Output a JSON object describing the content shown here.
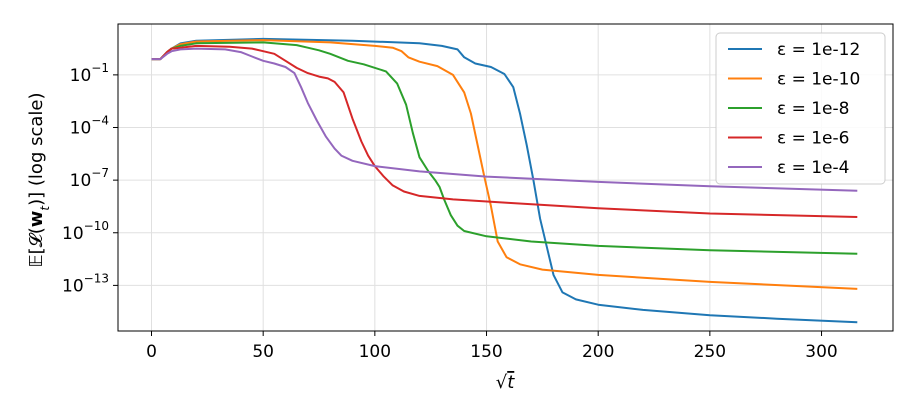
{
  "chart_data": {
    "type": "line",
    "title": "",
    "xlabel": "√t",
    "ylabel": "𝔼[𝓛(𝐰_t)] (log scale)",
    "ylabel_parts": {
      "pre": "𝔼[𝓛(",
      "bold": "w",
      "sub": "t",
      "post": ")] (log scale)"
    },
    "xlabel_parts": {
      "root": "√",
      "var": "t"
    },
    "x_scale": "linear",
    "y_scale": "log",
    "xlim": [
      -15,
      332
    ],
    "ylim_log10": [
      -15.6,
      1.9
    ],
    "grid": true,
    "legend_position": "top-right",
    "x_ticks": [
      0,
      50,
      100,
      150,
      200,
      250,
      300
    ],
    "x_tick_labels": [
      "0",
      "50",
      "100",
      "150",
      "200",
      "250",
      "300"
    ],
    "y_ticks_log10": [
      -1,
      -4,
      -7,
      -10,
      -13
    ],
    "y_tick_labels": [
      {
        "base": "10",
        "exp": "−1"
      },
      {
        "base": "10",
        "exp": "−4"
      },
      {
        "base": "10",
        "exp": "−7"
      },
      {
        "base": "10",
        "exp": "−10"
      },
      {
        "base": "10",
        "exp": "−13"
      }
    ],
    "series": [
      {
        "name": "ε = 1e-12",
        "color": "#1f77b4",
        "points_log10": [
          [
            0,
            -0.1
          ],
          [
            4,
            -0.1
          ],
          [
            7,
            0.3
          ],
          [
            9,
            0.5
          ],
          [
            13,
            0.8
          ],
          [
            20,
            0.95
          ],
          [
            50,
            1.05
          ],
          [
            90,
            0.95
          ],
          [
            120,
            0.8
          ],
          [
            130,
            0.65
          ],
          [
            137,
            0.45
          ],
          [
            140,
            0.0
          ],
          [
            145,
            -0.35
          ],
          [
            152,
            -0.55
          ],
          [
            158,
            -0.95
          ],
          [
            162,
            -1.7
          ],
          [
            165,
            -3.2
          ],
          [
            168,
            -5.0
          ],
          [
            171,
            -7.0
          ],
          [
            174,
            -9.2
          ],
          [
            177,
            -10.8
          ],
          [
            180,
            -12.4
          ],
          [
            184,
            -13.4
          ],
          [
            190,
            -13.8
          ],
          [
            200,
            -14.1
          ],
          [
            220,
            -14.4
          ],
          [
            250,
            -14.7
          ],
          [
            280,
            -14.9
          ],
          [
            316,
            -15.1
          ]
        ],
        "endpoint": [
          [
            316,
            -15.1
          ]
        ]
      },
      {
        "name": "ε = 1e-10",
        "color": "#ff7f0e",
        "points_log10": [
          [
            0,
            -0.1
          ],
          [
            4,
            -0.1
          ],
          [
            7,
            0.3
          ],
          [
            9,
            0.5
          ],
          [
            13,
            0.75
          ],
          [
            20,
            0.9
          ],
          [
            50,
            0.98
          ],
          [
            80,
            0.85
          ],
          [
            100,
            0.65
          ],
          [
            108,
            0.55
          ],
          [
            112,
            0.35
          ],
          [
            115,
            0.0
          ],
          [
            120,
            -0.25
          ],
          [
            128,
            -0.5
          ],
          [
            135,
            -1.0
          ],
          [
            140,
            -2.0
          ],
          [
            143,
            -3.2
          ],
          [
            146,
            -5.0
          ],
          [
            149,
            -6.8
          ],
          [
            152,
            -8.5
          ],
          [
            155,
            -10.5
          ],
          [
            159,
            -11.4
          ],
          [
            165,
            -11.8
          ],
          [
            175,
            -12.1
          ],
          [
            200,
            -12.4
          ],
          [
            250,
            -12.8
          ],
          [
            316,
            -13.2
          ]
        ],
        "endpoint": [
          [
            316,
            -13.2
          ]
        ]
      },
      {
        "name": "ε = 1e-8",
        "color": "#2ca02c",
        "points_log10": [
          [
            0,
            -0.1
          ],
          [
            4,
            -0.1
          ],
          [
            7,
            0.3
          ],
          [
            9,
            0.5
          ],
          [
            13,
            0.65
          ],
          [
            20,
            0.8
          ],
          [
            50,
            0.85
          ],
          [
            65,
            0.7
          ],
          [
            70,
            0.55
          ],
          [
            75,
            0.4
          ],
          [
            80,
            0.2
          ],
          [
            84,
            0.0
          ],
          [
            88,
            -0.2
          ],
          [
            95,
            -0.4
          ],
          [
            105,
            -0.8
          ],
          [
            110,
            -1.5
          ],
          [
            114,
            -2.7
          ],
          [
            117,
            -4.3
          ],
          [
            120,
            -5.7
          ],
          [
            124,
            -6.5
          ],
          [
            127,
            -7.0
          ],
          [
            129,
            -7.4
          ],
          [
            131,
            -8.1
          ],
          [
            134,
            -9.0
          ],
          [
            137,
            -9.6
          ],
          [
            140,
            -9.9
          ],
          [
            150,
            -10.2
          ],
          [
            170,
            -10.5
          ],
          [
            200,
            -10.75
          ],
          [
            250,
            -11.0
          ],
          [
            316,
            -11.2
          ]
        ],
        "endpoint": [
          [
            316,
            -11.2
          ]
        ]
      },
      {
        "name": "ε = 1e-6",
        "color": "#d62728",
        "points_log10": [
          [
            0,
            -0.1
          ],
          [
            4,
            -0.1
          ],
          [
            7,
            0.3
          ],
          [
            9,
            0.5
          ],
          [
            13,
            0.55
          ],
          [
            20,
            0.65
          ],
          [
            35,
            0.6
          ],
          [
            45,
            0.5
          ],
          [
            50,
            0.35
          ],
          [
            55,
            0.2
          ],
          [
            60,
            -0.2
          ],
          [
            65,
            -0.6
          ],
          [
            70,
            -0.9
          ],
          [
            75,
            -1.1
          ],
          [
            79,
            -1.2
          ],
          [
            82,
            -1.4
          ],
          [
            86,
            -2.0
          ],
          [
            90,
            -3.5
          ],
          [
            94,
            -4.8
          ],
          [
            97,
            -5.6
          ],
          [
            100,
            -6.2
          ],
          [
            104,
            -6.8
          ],
          [
            108,
            -7.3
          ],
          [
            113,
            -7.65
          ],
          [
            120,
            -7.9
          ],
          [
            135,
            -8.1
          ],
          [
            160,
            -8.3
          ],
          [
            200,
            -8.6
          ],
          [
            250,
            -8.9
          ],
          [
            316,
            -9.1
          ]
        ],
        "endpoint": [
          [
            316,
            -9.1
          ]
        ]
      },
      {
        "name": "ε = 1e-4",
        "color": "#9467bd",
        "points_log10": [
          [
            0,
            -0.1
          ],
          [
            4,
            -0.1
          ],
          [
            7,
            0.2
          ],
          [
            9,
            0.35
          ],
          [
            13,
            0.45
          ],
          [
            20,
            0.5
          ],
          [
            33,
            0.45
          ],
          [
            40,
            0.3
          ],
          [
            45,
            0.05
          ],
          [
            50,
            -0.2
          ],
          [
            55,
            -0.35
          ],
          [
            60,
            -0.55
          ],
          [
            64,
            -0.9
          ],
          [
            67,
            -1.7
          ],
          [
            70,
            -2.6
          ],
          [
            74,
            -3.6
          ],
          [
            78,
            -4.5
          ],
          [
            82,
            -5.2
          ],
          [
            85,
            -5.6
          ],
          [
            90,
            -5.9
          ],
          [
            100,
            -6.2
          ],
          [
            120,
            -6.5
          ],
          [
            150,
            -6.8
          ],
          [
            200,
            -7.1
          ],
          [
            250,
            -7.35
          ],
          [
            316,
            -7.6
          ]
        ],
        "endpoint": [
          [
            316,
            -7.6
          ]
        ]
      }
    ]
  }
}
